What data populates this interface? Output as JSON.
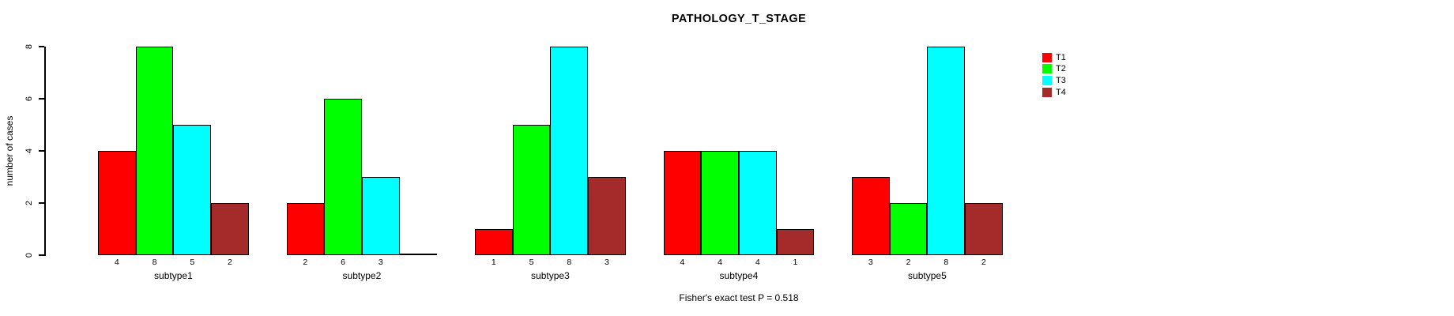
{
  "chart_data": {
    "type": "bar",
    "title": "PATHOLOGY_T_STAGE",
    "ylabel": "number of cases",
    "xlabel": "",
    "categories": [
      "subtype1",
      "subtype2",
      "subtype3",
      "subtype4",
      "subtype5"
    ],
    "series": [
      {
        "name": "T1",
        "color": "#FF0000",
        "values": [
          4,
          2,
          1,
          4,
          3
        ]
      },
      {
        "name": "T2",
        "color": "#00FF00",
        "values": [
          8,
          6,
          5,
          4,
          2
        ]
      },
      {
        "name": "T3",
        "color": "#00FFFF",
        "values": [
          5,
          3,
          8,
          4,
          8
        ]
      },
      {
        "name": "T4",
        "color": "#A52A2A",
        "values": [
          2,
          0,
          3,
          1,
          2
        ]
      }
    ],
    "yticks": [
      0,
      2,
      4,
      6,
      8
    ],
    "ylim": [
      0,
      8
    ],
    "grid": false,
    "legend_position": "right",
    "bar_value_labels": true,
    "zero_value_label_hidden": true,
    "annotation": "Fisher's exact test P = 0.518"
  },
  "colors": {
    "background": "#FFFFFF",
    "axis": "#000000",
    "bar_border": "#000000",
    "text": "#000000"
  }
}
